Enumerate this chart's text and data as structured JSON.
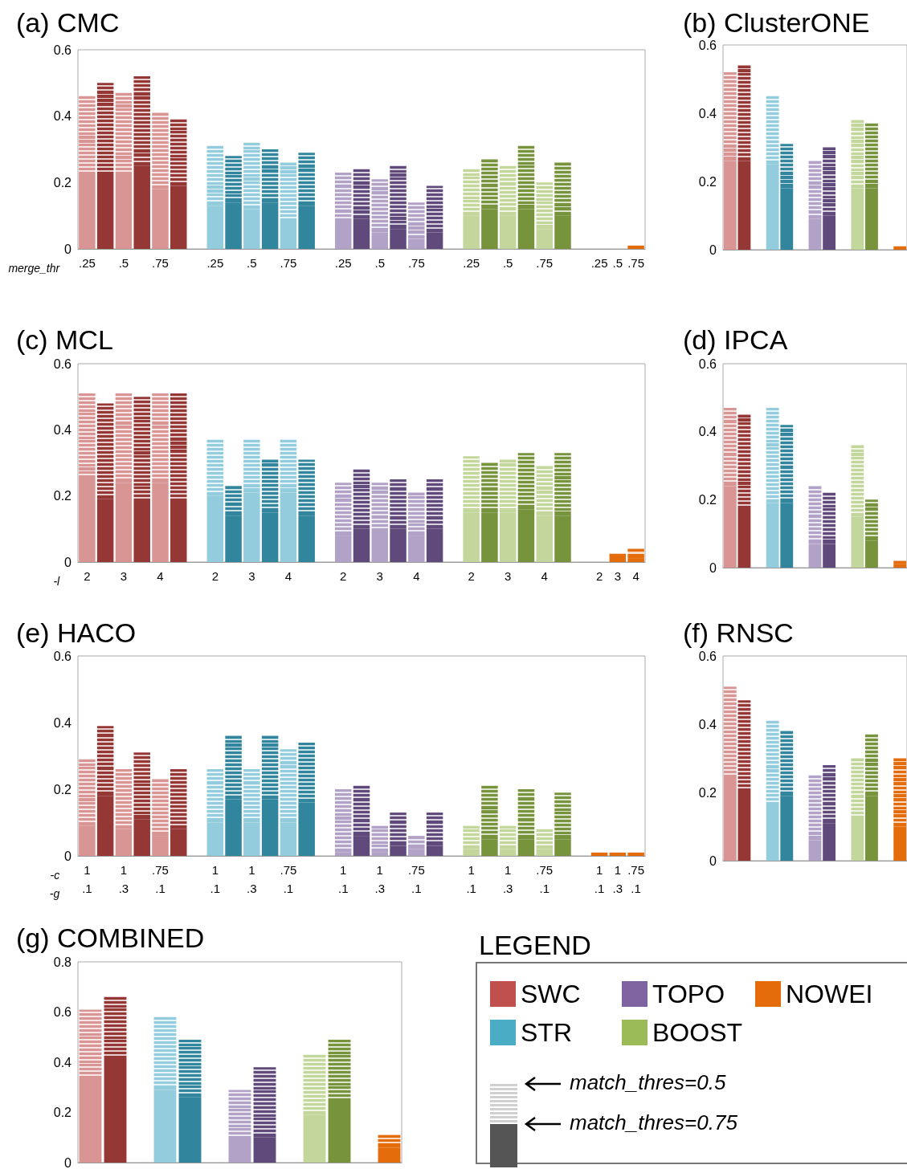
{
  "chart_data": [
    {
      "type": "bar",
      "title": "(a) CMC",
      "xlabel": "merge_thr",
      "stacked": true,
      "ylim": [
        0,
        0.6
      ],
      "yticks": [
        0,
        0.2,
        0.4,
        0.6
      ],
      "categories": [
        ".25",
        null,
        ".5",
        null,
        ".75",
        null,
        null,
        ".25",
        null,
        ".5",
        null,
        ".75",
        null,
        null,
        ".25",
        null,
        ".5",
        null,
        ".75",
        null,
        null,
        ".25",
        null,
        ".5",
        null,
        ".75",
        null,
        null,
        ".25",
        ".5",
        ".75"
      ],
      "series": [
        {
          "colors": [
            "#d99594",
            "#953735",
            "#d99594",
            "#953735",
            "#d99594",
            "#953735",
            "#953735",
            "#93cddd",
            "#31859c",
            "#93cddd",
            "#31859c",
            "#93cddd",
            "#31859c",
            "#31859c",
            "#b3a2c7",
            "#604a7b",
            "#b3a2c7",
            "#604a7b",
            "#b3a2c7",
            "#604a7b",
            "#604a7b",
            "#c3d69b",
            "#77933c",
            "#c3d69b",
            "#77933c",
            "#c3d69b",
            "#77933c",
            "#77933c",
            "#e46c0a",
            "#e46c0a",
            "#e46c0a"
          ],
          "values": [
            0.22,
            0.22,
            0.22,
            0.25,
            0.18,
            0.19,
            null,
            0.13,
            0.14,
            0.12,
            0.14,
            0.08,
            0.13,
            null,
            0.08,
            0.09,
            0.05,
            0.06,
            0.03,
            0.05,
            null,
            0.1,
            0.12,
            0.1,
            0.12,
            0.06,
            0.1,
            null,
            0,
            0,
            0
          ]
        },
        {
          "colors": [
            "#d99594",
            "#953735",
            "#d99594",
            "#953735",
            "#d99594",
            "#953735",
            "#953735",
            "#93cddd",
            "#31859c",
            "#93cddd",
            "#31859c",
            "#93cddd",
            "#31859c",
            "#31859c",
            "#b3a2c7",
            "#604a7b",
            "#b3a2c7",
            "#604a7b",
            "#b3a2c7",
            "#604a7b",
            "#604a7b",
            "#c3d69b",
            "#77933c",
            "#c3d69b",
            "#77933c",
            "#c3d69b",
            "#77933c",
            "#77933c",
            "#e46c0a",
            "#e46c0a",
            "#e46c0a"
          ],
          "values": [
            0.24,
            0.28,
            0.25,
            0.27,
            0.23,
            0.2,
            null,
            0.18,
            0.14,
            0.2,
            0.16,
            0.18,
            0.16,
            null,
            0.15,
            0.15,
            0.16,
            0.19,
            0.11,
            0.14,
            null,
            0.14,
            0.15,
            0.15,
            0.19,
            0.14,
            0.16,
            null,
            0,
            0,
            0.01
          ]
        }
      ]
    },
    {
      "type": "bar",
      "title": "(b) ClusterONE",
      "stacked": true,
      "ylim": [
        0,
        0.6
      ],
      "yticks": [
        0,
        0.2,
        0.4,
        0.6
      ],
      "categories": [
        null,
        null,
        null,
        null,
        null,
        null,
        null,
        null,
        null,
        null,
        null,
        null,
        null
      ],
      "series": [
        {
          "colors": [
            "#d99594",
            "#953735",
            "#953735",
            "#93cddd",
            "#31859c",
            "#31859c",
            "#b3a2c7",
            "#604a7b",
            "#604a7b",
            "#c3d69b",
            "#77933c",
            "#77933c",
            "#e46c0a"
          ],
          "values": [
            0.26,
            0.26,
            null,
            0.25,
            0.18,
            null,
            0.09,
            0.1,
            null,
            0.18,
            0.18,
            null,
            0
          ]
        },
        {
          "colors": [
            "#d99594",
            "#953735",
            "#953735",
            "#93cddd",
            "#31859c",
            "#31859c",
            "#b3a2c7",
            "#604a7b",
            "#604a7b",
            "#c3d69b",
            "#77933c",
            "#77933c",
            "#e46c0a"
          ],
          "values": [
            0.26,
            0.28,
            null,
            0.2,
            0.13,
            null,
            0.17,
            0.2,
            null,
            0.2,
            0.19,
            null,
            0.01
          ]
        }
      ]
    },
    {
      "type": "bar",
      "title": "(c) MCL",
      "xlabel": "-l",
      "stacked": true,
      "ylim": [
        0,
        0.6
      ],
      "yticks": [
        0,
        0.2,
        0.4,
        0.6
      ],
      "categories": [
        "2",
        null,
        "3",
        null,
        "4",
        null,
        null,
        "2",
        null,
        "3",
        null,
        "4",
        null,
        null,
        "2",
        null,
        "3",
        null,
        "4",
        null,
        null,
        "2",
        null,
        "3",
        null,
        "4",
        null,
        null,
        "2",
        "3",
        "4"
      ],
      "series": [
        {
          "colors": [
            "#d99594",
            "#953735",
            "#d99594",
            "#953735",
            "#d99594",
            "#953735",
            "#953735",
            "#93cddd",
            "#31859c",
            "#93cddd",
            "#31859c",
            "#93cddd",
            "#31859c",
            "#31859c",
            "#b3a2c7",
            "#604a7b",
            "#b3a2c7",
            "#604a7b",
            "#b3a2c7",
            "#604a7b",
            "#604a7b",
            "#c3d69b",
            "#77933c",
            "#c3d69b",
            "#77933c",
            "#c3d69b",
            "#77933c",
            "#77933c",
            "#e46c0a",
            "#e46c0a",
            "#e46c0a"
          ],
          "values": [
            0.25,
            0.19,
            0.24,
            0.18,
            0.24,
            0.18,
            null,
            0.2,
            0.14,
            0.21,
            0.15,
            0.21,
            0.14,
            null,
            0.08,
            0.1,
            0.09,
            0.1,
            0.08,
            0.1,
            null,
            0.15,
            0.15,
            0.15,
            0.16,
            0.14,
            0.14,
            null,
            0,
            0.025,
            0.01
          ]
        },
        {
          "colors": [
            "#d99594",
            "#953735",
            "#d99594",
            "#953735",
            "#d99594",
            "#953735",
            "#953735",
            "#93cddd",
            "#31859c",
            "#93cddd",
            "#31859c",
            "#93cddd",
            "#31859c",
            "#31859c",
            "#b3a2c7",
            "#604a7b",
            "#b3a2c7",
            "#604a7b",
            "#b3a2c7",
            "#604a7b",
            "#604a7b",
            "#c3d69b",
            "#77933c",
            "#c3d69b",
            "#77933c",
            "#c3d69b",
            "#77933c",
            "#77933c",
            "#e46c0a",
            "#e46c0a",
            "#e46c0a"
          ],
          "values": [
            0.26,
            0.29,
            0.27,
            0.32,
            0.27,
            0.33,
            null,
            0.17,
            0.09,
            0.16,
            0.16,
            0.16,
            0.17,
            null,
            0.16,
            0.18,
            0.15,
            0.15,
            0.13,
            0.15,
            null,
            0.17,
            0.15,
            0.16,
            0.17,
            0.15,
            0.19,
            null,
            0,
            0,
            0.03
          ]
        }
      ]
    },
    {
      "type": "bar",
      "title": "(d) IPCA",
      "stacked": true,
      "ylim": [
        0,
        0.6
      ],
      "yticks": [
        0,
        0.2,
        0.4,
        0.6
      ],
      "categories": [
        null,
        null,
        null,
        null,
        null,
        null,
        null,
        null,
        null,
        null,
        null,
        null,
        null
      ],
      "series": [
        {
          "colors": [
            "#d99594",
            "#953735",
            "#953735",
            "#93cddd",
            "#31859c",
            "#31859c",
            "#b3a2c7",
            "#604a7b",
            "#604a7b",
            "#c3d69b",
            "#77933c",
            "#77933c",
            "#e46c0a"
          ],
          "values": [
            0.24,
            0.17,
            null,
            0.19,
            0.19,
            null,
            0.07,
            0.07,
            null,
            0.15,
            0.08,
            null,
            0.01
          ]
        },
        {
          "colors": [
            "#d99594",
            "#953735",
            "#953735",
            "#93cddd",
            "#31859c",
            "#31859c",
            "#b3a2c7",
            "#604a7b",
            "#604a7b",
            "#c3d69b",
            "#77933c",
            "#77933c",
            "#e46c0a"
          ],
          "values": [
            0.23,
            0.28,
            null,
            0.28,
            0.23,
            null,
            0.17,
            0.15,
            null,
            0.21,
            0.12,
            null,
            0.01
          ]
        }
      ]
    },
    {
      "type": "bar",
      "title": "(e) HACO",
      "xlabel": "-c\n-g",
      "stacked": true,
      "ylim": [
        0,
        0.6
      ],
      "yticks": [
        0,
        0.2,
        0.4,
        0.6
      ],
      "categories": [
        "1\n.1",
        null,
        "1\n.3",
        null,
        ".75\n.1",
        null,
        null,
        "1\n.1",
        null,
        "1\n.3",
        null,
        ".75\n.1",
        null,
        null,
        "1\n.1",
        null,
        "1\n.3",
        null,
        ".75\n.1",
        null,
        null,
        "1\n.1",
        null,
        "1\n.3",
        null,
        ".75\n.1",
        null,
        null,
        "1\n.1",
        "1\n.3",
        ".75\n.1"
      ],
      "series": [
        {
          "colors": [
            "#d99594",
            "#953735",
            "#d99594",
            "#953735",
            "#d99594",
            "#953735",
            "#953735",
            "#93cddd",
            "#31859c",
            "#93cddd",
            "#31859c",
            "#93cddd",
            "#31859c",
            "#31859c",
            "#b3a2c7",
            "#604a7b",
            "#b3a2c7",
            "#604a7b",
            "#b3a2c7",
            "#604a7b",
            "#604a7b",
            "#c3d69b",
            "#77933c",
            "#c3d69b",
            "#77933c",
            "#c3d69b",
            "#77933c",
            "#77933c",
            "#e46c0a",
            "#e46c0a",
            "#e46c0a"
          ],
          "values": [
            0.09,
            0.18,
            0.08,
            0.11,
            0.06,
            0.08,
            null,
            0.1,
            0.17,
            0.1,
            0.17,
            0.1,
            0.16,
            null,
            0.01,
            0.06,
            0.01,
            0.03,
            0.02,
            0.03,
            null,
            0.02,
            0.05,
            0.02,
            0.05,
            0.02,
            0.05,
            null,
            0,
            0,
            0
          ]
        },
        {
          "colors": [
            "#d99594",
            "#953735",
            "#d99594",
            "#953735",
            "#d99594",
            "#953735",
            "#953735",
            "#93cddd",
            "#31859c",
            "#93cddd",
            "#31859c",
            "#93cddd",
            "#31859c",
            "#31859c",
            "#b3a2c7",
            "#604a7b",
            "#b3a2c7",
            "#604a7b",
            "#b3a2c7",
            "#604a7b",
            "#604a7b",
            "#c3d69b",
            "#77933c",
            "#c3d69b",
            "#77933c",
            "#c3d69b",
            "#77933c",
            "#77933c",
            "#e46c0a",
            "#e46c0a",
            "#e46c0a"
          ],
          "values": [
            0.2,
            0.21,
            0.18,
            0.2,
            0.17,
            0.18,
            null,
            0.16,
            0.19,
            0.16,
            0.19,
            0.22,
            0.18,
            null,
            0.19,
            0.15,
            0.08,
            0.1,
            0.04,
            0.1,
            null,
            0.07,
            0.16,
            0.07,
            0.15,
            0.06,
            0.14,
            null,
            0.01,
            0.01,
            0.01
          ]
        }
      ]
    },
    {
      "type": "bar",
      "title": "(f) RNSC",
      "stacked": true,
      "ylim": [
        0,
        0.6
      ],
      "yticks": [
        0,
        0.2,
        0.4,
        0.6
      ],
      "categories": [
        null,
        null,
        null,
        null,
        null,
        null,
        null,
        null,
        null,
        null,
        null,
        null,
        null
      ],
      "series": [
        {
          "colors": [
            "#d99594",
            "#953735",
            "#953735",
            "#93cddd",
            "#31859c",
            "#31859c",
            "#b3a2c7",
            "#604a7b",
            "#604a7b",
            "#c3d69b",
            "#77933c",
            "#77933c",
            "#e46c0a"
          ],
          "values": [
            0.24,
            0.2,
            null,
            0.16,
            0.19,
            null,
            0.06,
            0.11,
            null,
            0.12,
            0.19,
            null,
            0.1
          ]
        },
        {
          "colors": [
            "#d99594",
            "#953735",
            "#953735",
            "#93cddd",
            "#31859c",
            "#31859c",
            "#b3a2c7",
            "#604a7b",
            "#604a7b",
            "#c3d69b",
            "#77933c",
            "#77933c",
            "#e46c0a"
          ],
          "values": [
            0.27,
            0.27,
            null,
            0.25,
            0.19,
            null,
            0.19,
            0.17,
            null,
            0.18,
            0.18,
            null,
            0.2
          ]
        }
      ]
    },
    {
      "type": "bar",
      "title": "(g) COMBINED",
      "stacked": true,
      "ylim": [
        0,
        0.8
      ],
      "yticks": [
        0,
        0.2,
        0.4,
        0.6,
        0.8
      ],
      "categories": [
        null,
        null,
        null,
        null,
        null,
        null,
        null,
        null,
        null,
        null,
        null,
        null,
        null
      ],
      "series": [
        {
          "colors": [
            "#d99594",
            "#953735",
            "#953735",
            "#93cddd",
            "#31859c",
            "#31859c",
            "#b3a2c7",
            "#604a7b",
            "#604a7b",
            "#c3d69b",
            "#77933c",
            "#77933c",
            "#e46c0a"
          ],
          "values": [
            0.33,
            0.41,
            null,
            0.29,
            0.26,
            null,
            0.09,
            0.1,
            null,
            0.19,
            0.24,
            null,
            0.06
          ]
        },
        {
          "colors": [
            "#d99594",
            "#953735",
            "#953735",
            "#93cddd",
            "#31859c",
            "#31859c",
            "#b3a2c7",
            "#604a7b",
            "#604a7b",
            "#c3d69b",
            "#77933c",
            "#77933c",
            "#e46c0a"
          ],
          "values": [
            0.28,
            0.25,
            null,
            0.29,
            0.23,
            null,
            0.2,
            0.28,
            null,
            0.24,
            0.25,
            null,
            0.05
          ]
        }
      ]
    },
    {
      "type": "other",
      "title": "LEGEND",
      "colors": [
        "#c0504d",
        "#8064a2",
        "#e46c0a",
        "#4bacc6",
        "#9bbb59"
      ],
      "annotations": [
        "SWC",
        "TOPO",
        "NOWEI",
        "STR",
        "BOOST",
        "match_thres=0.5",
        "match_thres=0.75"
      ]
    }
  ]
}
